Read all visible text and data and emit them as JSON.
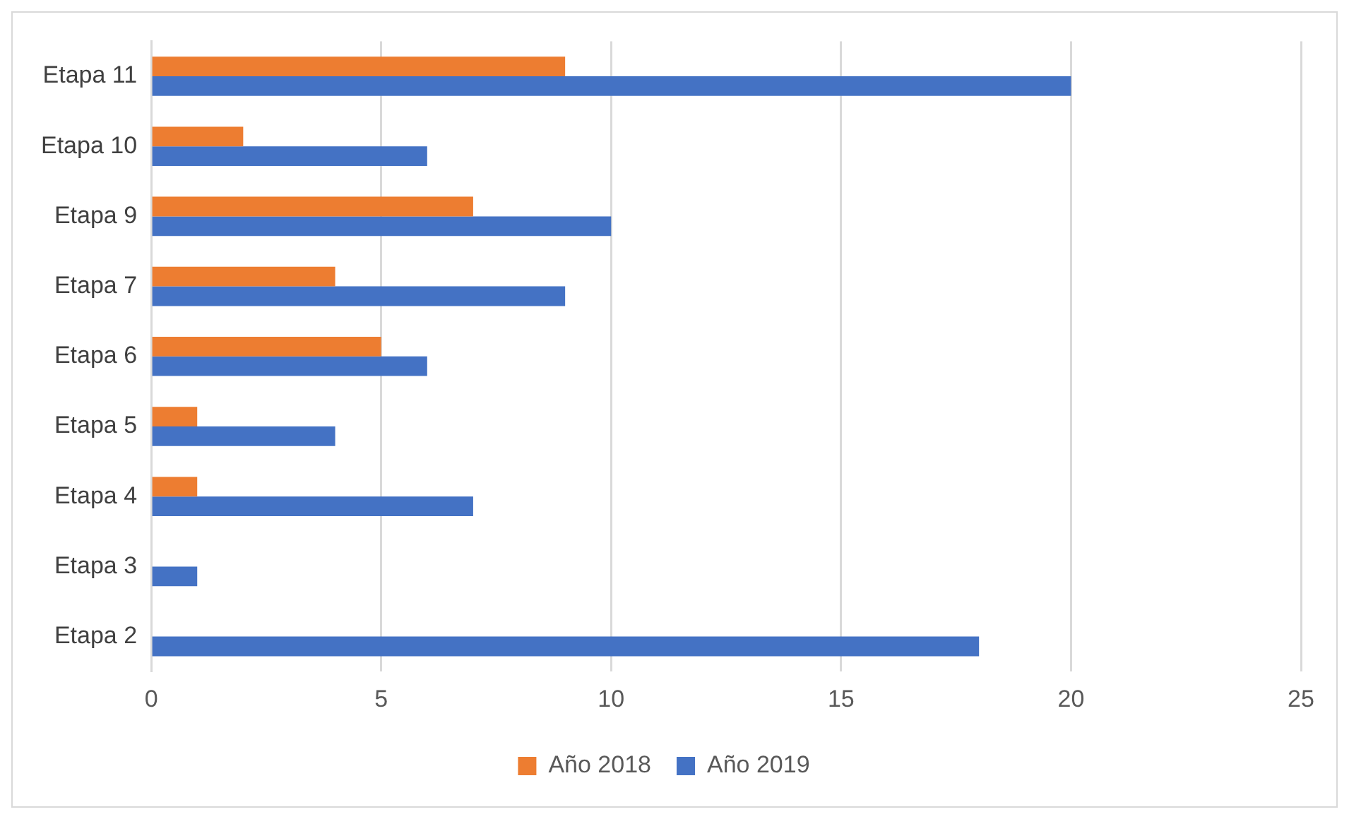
{
  "chart_data": {
    "type": "bar",
    "orientation": "horizontal",
    "categories": [
      "Etapa 11",
      "Etapa 10",
      "Etapa 9",
      "Etapa 7",
      "Etapa 6",
      "Etapa 5",
      "Etapa 4",
      "Etapa 3",
      "Etapa 2"
    ],
    "series": [
      {
        "name": "Año 2018",
        "color": "#ed7d31",
        "values": [
          9,
          2,
          7,
          4,
          5,
          1,
          1,
          0,
          0
        ]
      },
      {
        "name": "Año 2019",
        "color": "#4472c4",
        "values": [
          20,
          6,
          10,
          9,
          6,
          4,
          7,
          1,
          18
        ]
      }
    ],
    "xlim": [
      0,
      25
    ],
    "xticks": [
      0,
      5,
      10,
      15,
      20,
      25
    ],
    "grid": "x",
    "legend": "bottom"
  }
}
